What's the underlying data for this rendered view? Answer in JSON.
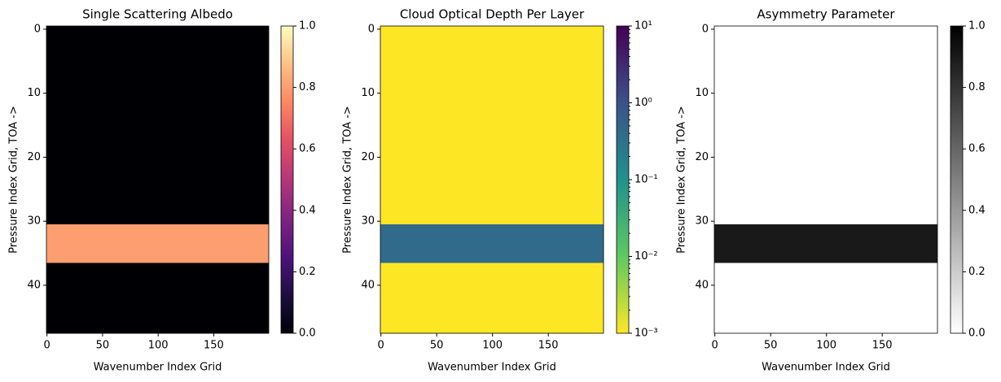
{
  "chart_data": [
    {
      "type": "heatmap",
      "title": "Single Scattering Albedo",
      "x_label": "Wavenumber Index Grid",
      "y_label": "Pressure Index Grid, TOA ->",
      "cmap": "magma",
      "xlim": [
        -0.5,
        199.5
      ],
      "ylim": [
        47.5,
        -0.5
      ],
      "xticks": [
        0,
        50,
        100,
        150
      ],
      "yticks": [
        0,
        10,
        20,
        30,
        40
      ],
      "values": [
        0,
        0,
        0,
        0,
        0,
        0,
        0,
        0,
        0,
        0,
        0,
        0,
        0,
        0,
        0,
        0,
        0,
        0,
        0,
        0,
        0,
        0,
        0,
        0,
        0,
        0,
        0,
        0,
        0,
        0,
        0,
        0.8,
        0.8,
        0.8,
        0.8,
        0.8,
        0.8,
        0,
        0,
        0,
        0,
        0,
        0,
        0,
        0,
        0,
        0,
        0
      ],
      "cscale": "linear",
      "clim": [
        0,
        1
      ],
      "cticks": [
        {
          "value": 0,
          "label": "0.0"
        },
        {
          "value": 0.2,
          "label": "0.2"
        },
        {
          "value": 0.4,
          "label": "0.4"
        },
        {
          "value": 0.6,
          "label": "0.6"
        },
        {
          "value": 0.8,
          "label": "0.8"
        },
        {
          "value": 1,
          "label": "1.0"
        }
      ]
    },
    {
      "type": "heatmap",
      "title": "Cloud Optical Depth Per Layer",
      "x_label": "Wavenumber Index Grid",
      "y_label": "Pressure Index Grid, TOA ->",
      "cmap": "viridis_r",
      "xlim": [
        -0.5,
        199.5
      ],
      "ylim": [
        47.5,
        -0.5
      ],
      "xticks": [
        0,
        50,
        100,
        150
      ],
      "yticks": [
        0,
        10,
        20,
        30,
        40
      ],
      "values": [
        0.001,
        0.001,
        0.001,
        0.001,
        0.001,
        0.001,
        0.001,
        0.001,
        0.001,
        0.001,
        0.001,
        0.001,
        0.001,
        0.001,
        0.001,
        0.001,
        0.001,
        0.001,
        0.001,
        0.001,
        0.001,
        0.001,
        0.001,
        0.001,
        0.001,
        0.001,
        0.001,
        0.001,
        0.001,
        0.001,
        0.001,
        0.4,
        0.4,
        0.4,
        0.4,
        0.4,
        0.4,
        0.001,
        0.001,
        0.001,
        0.001,
        0.001,
        0.001,
        0.001,
        0.001,
        0.001,
        0.001,
        0.001
      ],
      "cscale": "log",
      "clim": [
        0.001,
        10
      ],
      "cticks": [
        {
          "value": 0.001,
          "label": "10⁻³"
        },
        {
          "value": 0.01,
          "label": "10⁻²"
        },
        {
          "value": 0.1,
          "label": "10⁻¹"
        },
        {
          "value": 1,
          "label": "10⁰"
        },
        {
          "value": 10,
          "label": "10¹"
        }
      ]
    },
    {
      "type": "heatmap",
      "title": "Asymmetry Parameter",
      "x_label": "Wavenumber Index Grid",
      "y_label": "Pressure Index Grid, TOA ->",
      "cmap": "gray_r",
      "xlim": [
        -0.5,
        199.5
      ],
      "ylim": [
        47.5,
        -0.5
      ],
      "xticks": [
        0,
        50,
        100,
        150
      ],
      "yticks": [
        0,
        10,
        20,
        30,
        40
      ],
      "values": [
        0,
        0,
        0,
        0,
        0,
        0,
        0,
        0,
        0,
        0,
        0,
        0,
        0,
        0,
        0,
        0,
        0,
        0,
        0,
        0,
        0,
        0,
        0,
        0,
        0,
        0,
        0,
        0,
        0,
        0,
        0,
        0.9,
        0.9,
        0.9,
        0.9,
        0.9,
        0.9,
        0,
        0,
        0,
        0,
        0,
        0,
        0,
        0,
        0,
        0,
        0
      ],
      "cscale": "linear",
      "clim": [
        0,
        1
      ],
      "cticks": [
        {
          "value": 0,
          "label": "0.0"
        },
        {
          "value": 0.2,
          "label": "0.2"
        },
        {
          "value": 0.4,
          "label": "0.4"
        },
        {
          "value": 0.6,
          "label": "0.6"
        },
        {
          "value": 0.8,
          "label": "0.8"
        },
        {
          "value": 1,
          "label": "1.0"
        }
      ]
    }
  ]
}
